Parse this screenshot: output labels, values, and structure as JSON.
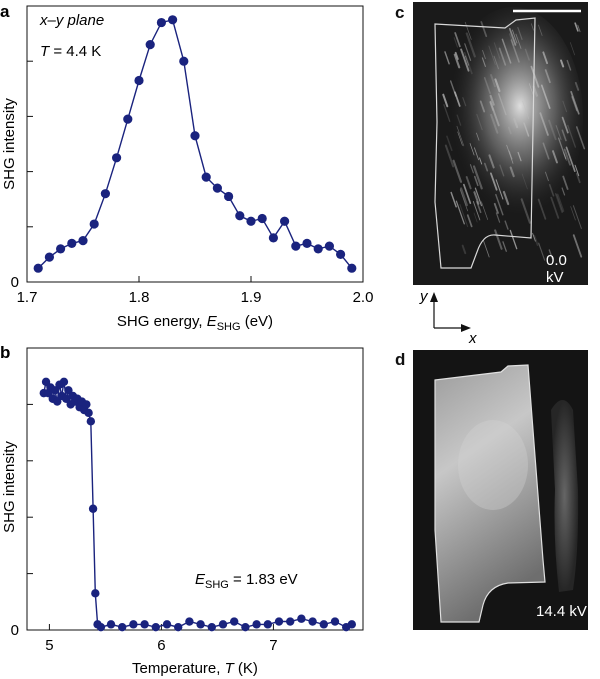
{
  "chart_data": [
    {
      "panel": "a",
      "type": "line",
      "annotation_line1": "x–y plane",
      "annotation_T_symbol": "T",
      "annotation_T_value": " = 4.4 K",
      "xlabel": "SHG energy, ",
      "xlabel_symbol": "E",
      "xlabel_sub": "SHG",
      "xlabel_unit": " (eV)",
      "ylabel": "SHG intensity",
      "xlim": [
        1.7,
        2.0
      ],
      "ylim": [
        0,
        1.0
      ],
      "x_ticks": [
        1.7,
        1.8,
        1.9,
        2.0
      ],
      "x_tick_labels": [
        "1.7",
        "1.8",
        "1.9",
        "2.0"
      ],
      "y_ticks": [
        0,
        0.2,
        0.4,
        0.6,
        0.8
      ],
      "y_tick_labels": [
        "0",
        "",
        "",
        "",
        ""
      ],
      "x": [
        1.71,
        1.72,
        1.73,
        1.74,
        1.75,
        1.76,
        1.77,
        1.78,
        1.79,
        1.8,
        1.81,
        1.82,
        1.83,
        1.84,
        1.85,
        1.86,
        1.87,
        1.88,
        1.89,
        1.9,
        1.91,
        1.92,
        1.93,
        1.94,
        1.95,
        1.96,
        1.97,
        1.98,
        1.99
      ],
      "y": [
        0.05,
        0.09,
        0.12,
        0.14,
        0.15,
        0.21,
        0.32,
        0.45,
        0.59,
        0.73,
        0.86,
        0.94,
        0.95,
        0.8,
        0.53,
        0.38,
        0.34,
        0.31,
        0.24,
        0.22,
        0.23,
        0.16,
        0.22,
        0.13,
        0.14,
        0.12,
        0.13,
        0.1,
        0.05
      ]
    },
    {
      "panel": "b",
      "type": "line",
      "annotation_symbol": "E",
      "annotation_sub": "SHG",
      "annotation_value": " = 1.83 eV",
      "xlabel": "Temperature, ",
      "xlabel_symbol": "T",
      "xlabel_unit": " (K)",
      "ylabel": "SHG intensity",
      "xlim": [
        4.8,
        7.8
      ],
      "ylim": [
        0,
        1.0
      ],
      "x_ticks": [
        5,
        6,
        7
      ],
      "x_tick_labels": [
        "5",
        "6",
        "7"
      ],
      "y_ticks": [
        0,
        0.2,
        0.4,
        0.6,
        0.8
      ],
      "y_tick_labels": [
        "0",
        "",
        "",
        "",
        ""
      ],
      "x": [
        4.95,
        4.97,
        4.99,
        5.01,
        5.03,
        5.05,
        5.07,
        5.09,
        5.11,
        5.13,
        5.15,
        5.17,
        5.19,
        5.21,
        5.23,
        5.25,
        5.27,
        5.29,
        5.31,
        5.33,
        5.35,
        5.37,
        5.39,
        5.41,
        5.43,
        5.46,
        5.55,
        5.65,
        5.75,
        5.85,
        5.95,
        6.05,
        6.15,
        6.25,
        6.35,
        6.45,
        6.55,
        6.65,
        6.75,
        6.85,
        6.95,
        7.05,
        7.15,
        7.25,
        7.35,
        7.45,
        7.55,
        7.65,
        7.7
      ],
      "y": [
        0.84,
        0.88,
        0.84,
        0.86,
        0.82,
        0.85,
        0.81,
        0.87,
        0.83,
        0.88,
        0.82,
        0.85,
        0.8,
        0.83,
        0.81,
        0.82,
        0.79,
        0.81,
        0.78,
        0.8,
        0.77,
        0.74,
        0.43,
        0.13,
        0.02,
        0.01,
        0.02,
        0.01,
        0.02,
        0.02,
        0.01,
        0.02,
        0.01,
        0.03,
        0.02,
        0.01,
        0.02,
        0.03,
        0.01,
        0.02,
        0.02,
        0.03,
        0.03,
        0.04,
        0.03,
        0.02,
        0.03,
        0.01,
        0.02
      ]
    }
  ],
  "micrographs": {
    "c": {
      "letter": "c",
      "label": "0.0 kV"
    },
    "d": {
      "letter": "d",
      "label": "14.4 kV"
    }
  },
  "axes_glyph": {
    "y": "y",
    "x": "x"
  }
}
